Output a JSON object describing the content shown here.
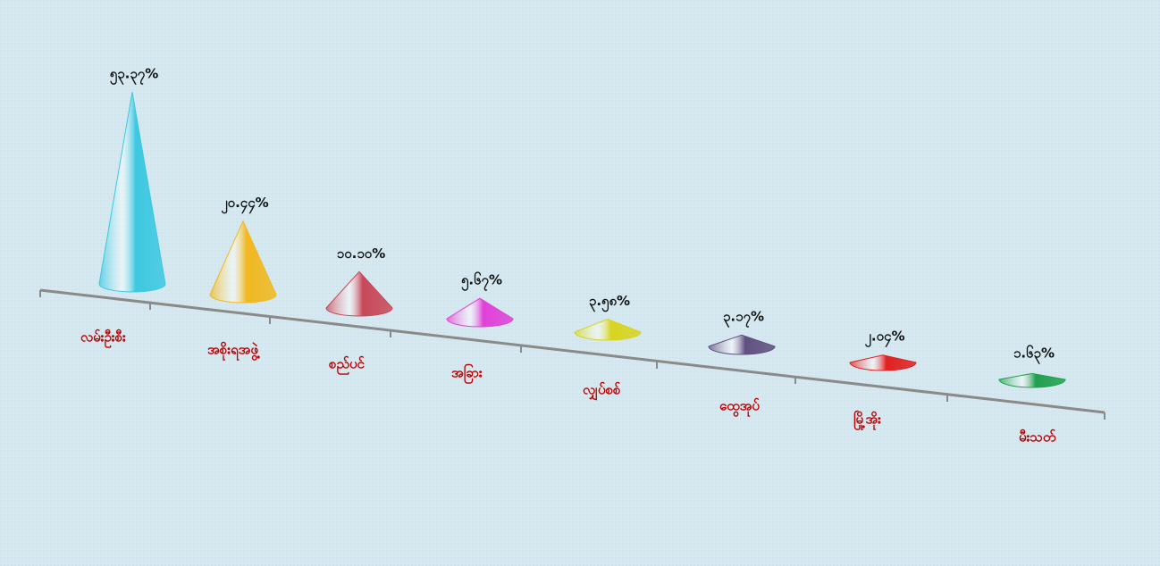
{
  "chart_data": {
    "type": "cone",
    "categories": [
      "လမ်းဦးစီး",
      "အစိုးရအဖွဲ့",
      "စည်ပင်",
      "အခြား",
      "လျှပ်စစ်",
      "ထွေအုပ်",
      "မြို့အိုး",
      "မီးသတ်"
    ],
    "values": [
      53.37,
      20.44,
      10.1,
      5.67,
      3.58,
      3.17,
      2.04,
      1.63
    ],
    "value_labels": [
      "၅၃.၃၇%",
      "၂၀.၄၄%",
      "၁၀.၁၀%",
      "၅.၆၇%",
      "၃.၅၈%",
      "၃.၁၇%",
      "၂.၀၄%",
      "၁.၆၃%"
    ],
    "colors": [
      "#3cc8e0",
      "#f0b820",
      "#c84858",
      "#e040d8",
      "#d8d420",
      "#605080",
      "#e02020",
      "#20a050"
    ]
  }
}
